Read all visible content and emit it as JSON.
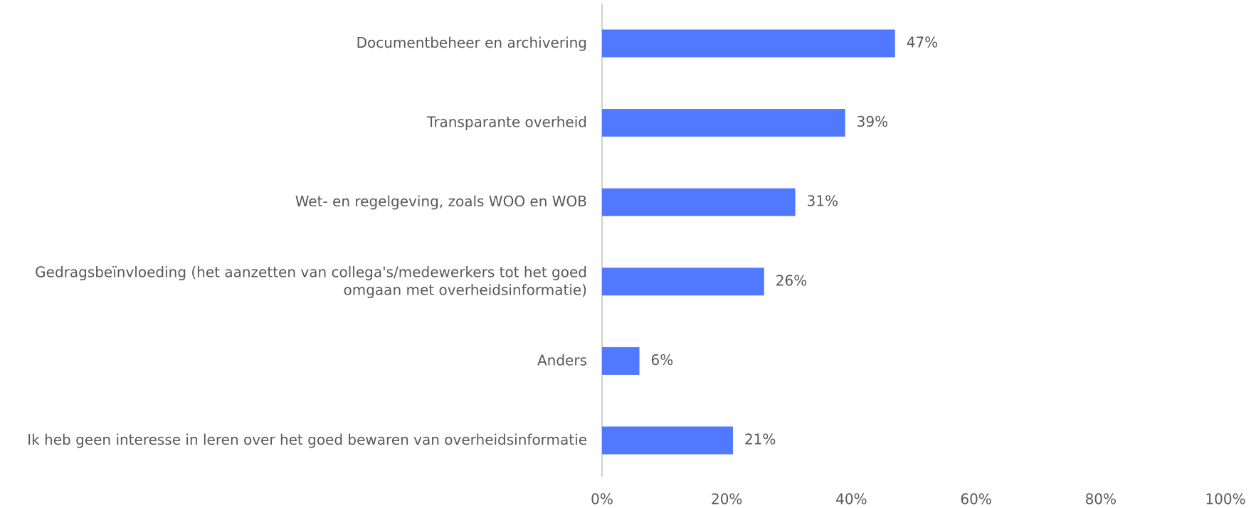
{
  "chart_data": {
    "type": "hbar",
    "categories": [
      "Documentbeheer en archivering",
      "Transparante overheid",
      "Wet- en regelgeving, zoals WOO en WOB",
      "Gedragsbeïnvloeding (het aanzetten van collega's/medewerkers tot het goed omgaan met overheidsinformatie)",
      "Anders",
      "Ik heb geen interesse in leren over het goed bewaren van overheidsinformatie"
    ],
    "values": [
      47,
      39,
      31,
      26,
      6,
      21
    ],
    "value_labels": [
      "47%",
      "39%",
      "31%",
      "26%",
      "6%",
      "21%"
    ],
    "color": "#5079ff",
    "xlim": [
      0,
      100
    ],
    "xticks": [
      {
        "value": 0,
        "label": "0%"
      },
      {
        "value": 20,
        "label": "20%"
      },
      {
        "value": 40,
        "label": "40%"
      },
      {
        "value": 60,
        "label": "60%"
      },
      {
        "value": 80,
        "label": "80%"
      },
      {
        "value": 100,
        "label": "100%"
      }
    ],
    "grid": false
  }
}
